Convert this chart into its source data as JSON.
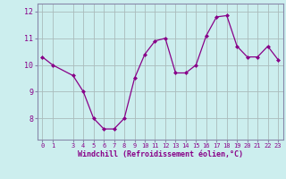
{
  "x": [
    0,
    1,
    3,
    4,
    5,
    6,
    7,
    8,
    9,
    10,
    11,
    12,
    13,
    14,
    15,
    16,
    17,
    18,
    19,
    20,
    21,
    22,
    23
  ],
  "y": [
    10.3,
    10.0,
    9.6,
    9.0,
    8.0,
    7.6,
    7.6,
    8.0,
    9.5,
    10.4,
    10.9,
    11.0,
    9.7,
    9.7,
    10.0,
    11.1,
    11.8,
    11.85,
    10.7,
    10.3,
    10.3,
    10.7,
    10.2
  ],
  "line_color": "#880088",
  "marker": "D",
  "marker_size": 2,
  "background_color": "#cceeee",
  "grid_color": "#aabbbb",
  "xlabel": "Windchill (Refroidissement éolien,°C)",
  "xlabel_color": "#880088",
  "tick_color": "#880088",
  "spine_color": "#8888aa",
  "ylim": [
    7.2,
    12.3
  ],
  "xlim": [
    -0.5,
    23.5
  ],
  "yticks": [
    8,
    9,
    10,
    11,
    12
  ],
  "xticks": [
    0,
    1,
    3,
    4,
    5,
    6,
    7,
    8,
    9,
    10,
    11,
    12,
    13,
    14,
    15,
    16,
    17,
    18,
    19,
    20,
    21,
    22,
    23
  ],
  "tick_fontsize": 5,
  "xlabel_fontsize": 6
}
